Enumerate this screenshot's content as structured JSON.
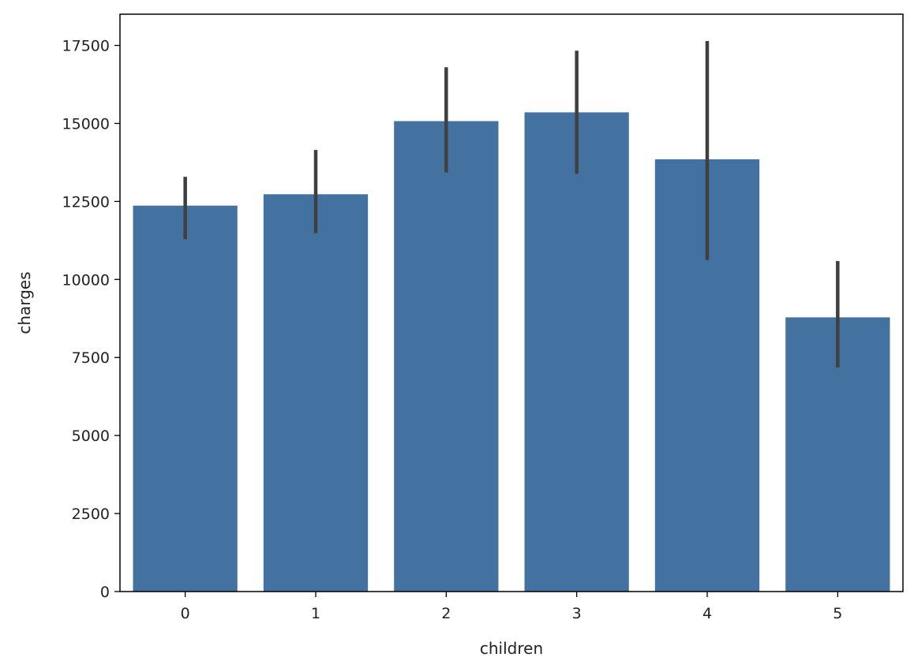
{
  "chart_data": {
    "type": "bar",
    "title": "",
    "xlabel": "children",
    "ylabel": "charges",
    "categories": [
      "0",
      "1",
      "2",
      "3",
      "4",
      "5"
    ],
    "values": [
      12366,
      12731,
      15074,
      15355,
      13851,
      8786
    ],
    "error_bars": [
      [
        11290,
        13290
      ],
      [
        11480,
        14150
      ],
      [
        13430,
        16800
      ],
      [
        13390,
        17330
      ],
      [
        10620,
        17640
      ],
      [
        7180,
        10590
      ]
    ],
    "ylim": [
      0,
      18500
    ],
    "yticks": [
      0,
      2500,
      5000,
      7500,
      10000,
      12500,
      15000,
      17500
    ],
    "ytick_labels": [
      "0",
      "2500",
      "5000",
      "7500",
      "10000",
      "12500",
      "15000",
      "17500"
    ],
    "grid": false,
    "colors": {
      "bar": "#4472a0",
      "error": "#3f3f3f",
      "axis": "#000000"
    }
  }
}
